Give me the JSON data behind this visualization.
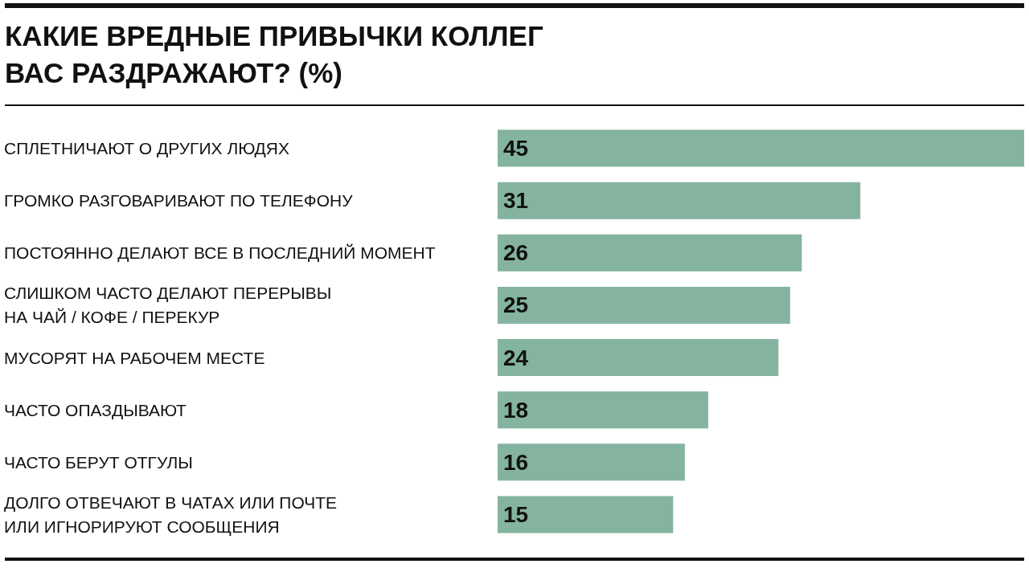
{
  "chart_data": {
    "type": "bar",
    "orientation": "horizontal",
    "title": "КАКИЕ ВРЕДНЫЕ ПРИВЫЧКИ КОЛЛЕГ\nВАС РАЗДРАЖАЮТ? (%)",
    "categories": [
      "СПЛЕТНИЧАЮТ О ДРУГИХ ЛЮДЯХ",
      "ГРОМКО РАЗГОВАРИВАЮТ ПО ТЕЛЕФОНУ",
      "ПОСТОЯННО ДЕЛАЮТ ВСЕ В ПОСЛЕДНИЙ МОМЕНТ",
      "СЛИШКОМ ЧАСТО ДЕЛАЮТ ПЕРЕРЫВЫ\nНА ЧАЙ / КОФЕ / ПЕРЕКУР",
      "МУСОРЯТ НА РАБОЧЕМ МЕСТЕ",
      "ЧАСТО ОПАЗДЫВАЮТ",
      "ЧАСТО БЕРУТ ОТГУЛЫ",
      "ДОЛГО ОТВЕЧАЮТ В ЧАТАХ ИЛИ ПОЧТЕ\nИЛИ ИГНОРИРУЮТ СООБЩЕНИЯ"
    ],
    "values": [
      45,
      31,
      26,
      25,
      24,
      18,
      16,
      15
    ],
    "color": "#84b4a0",
    "data_labels": true
  }
}
